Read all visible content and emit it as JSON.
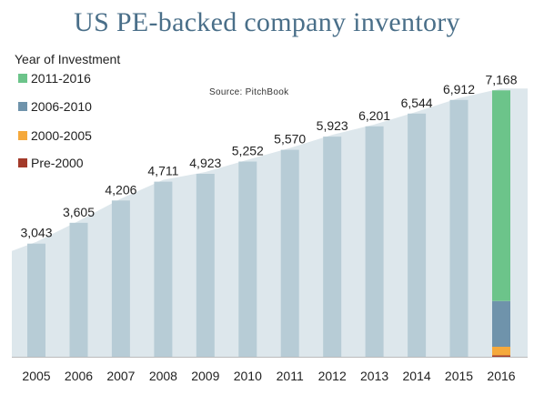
{
  "chart_data": {
    "type": "bar",
    "title": "US PE-backed company inventory",
    "source": "Source: PitchBook",
    "categories": [
      "2005",
      "2006",
      "2007",
      "2008",
      "2009",
      "2010",
      "2011",
      "2012",
      "2013",
      "2014",
      "2015",
      "2016"
    ],
    "values": [
      3043,
      3605,
      4206,
      4711,
      4923,
      5252,
      5570,
      5923,
      6201,
      6544,
      6912,
      7168
    ],
    "value_labels": [
      "3,043",
      "3,605",
      "4,206",
      "4,711",
      "4,923",
      "5,252",
      "5,570",
      "5,923",
      "6,201",
      "6,544",
      "6,912",
      "7,168"
    ],
    "ylim": [
      0,
      7200
    ],
    "xlabel": "",
    "ylabel": "",
    "grid": false,
    "legend": {
      "title": "Year of Investment",
      "placement": "top-left",
      "entries": [
        {
          "name": "2011-2016",
          "color": "#6cc48a"
        },
        {
          "name": "2006-2010",
          "color": "#6f93ab"
        },
        {
          "name": "2000-2005",
          "color": "#f5a93c"
        },
        {
          "name": "Pre-2000",
          "color": "#a33a2a"
        }
      ]
    },
    "last_bar_breakdown": {
      "category": "2016",
      "segments": [
        {
          "name": "Pre-2000",
          "value": 40
        },
        {
          "name": "2000-2005",
          "value": 230
        },
        {
          "name": "2006-2010",
          "value": 1230
        },
        {
          "name": "2011-2016",
          "value": 5668
        }
      ]
    },
    "colors": {
      "bar": "#b7ccd6",
      "area": "#dde7ec",
      "title": "#4a6f89",
      "axis": "#bbbbbb"
    }
  }
}
